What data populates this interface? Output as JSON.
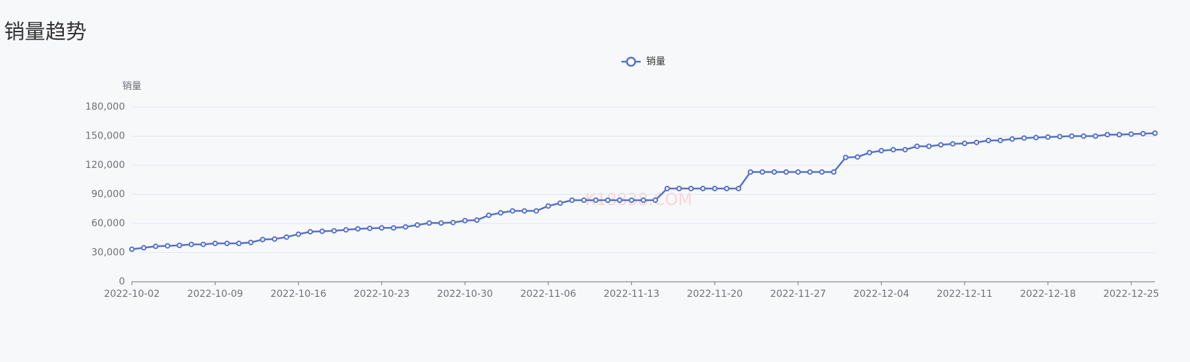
{
  "chart_data": {
    "type": "line",
    "title": "销量趋势",
    "y_axis_label": "销量",
    "watermark": "K18838.COM",
    "categories": [
      "2022-10-02",
      null,
      null,
      null,
      null,
      null,
      null,
      "2022-10-09",
      null,
      null,
      null,
      null,
      null,
      null,
      "2022-10-16",
      null,
      null,
      null,
      null,
      null,
      null,
      "2022-10-23",
      null,
      null,
      null,
      null,
      null,
      null,
      "2022-10-30",
      null,
      null,
      null,
      null,
      null,
      null,
      "2022-11-06",
      null,
      null,
      null,
      null,
      null,
      null,
      "2022-11-13",
      null,
      null,
      null,
      null,
      null,
      null,
      "2022-11-20",
      null,
      null,
      null,
      null,
      null,
      null,
      "2022-11-27",
      null,
      null,
      null,
      null,
      null,
      null,
      "2022-12-04",
      null,
      null,
      null,
      null,
      null,
      null,
      "2022-12-11",
      null,
      null,
      null,
      null,
      null,
      null,
      "2022-12-18",
      null,
      null,
      null,
      null,
      null,
      null,
      "2022-12-25",
      null,
      null
    ],
    "series": [
      {
        "name": "销量",
        "color": "#5470c6",
        "values": [
          33500,
          35000,
          36500,
          37000,
          37500,
          38500,
          38500,
          39500,
          39500,
          39500,
          40500,
          43500,
          44000,
          46000,
          49000,
          51500,
          52000,
          52500,
          53500,
          54500,
          55000,
          55500,
          55500,
          56500,
          58500,
          60500,
          60500,
          61000,
          63000,
          63500,
          68500,
          71000,
          73000,
          73000,
          73000,
          78000,
          81000,
          84000,
          84000,
          84000,
          84000,
          84000,
          84000,
          84000,
          84000,
          96000,
          96000,
          96000,
          96000,
          96000,
          96000,
          96000,
          113000,
          113000,
          113000,
          113000,
          113000,
          113000,
          113000,
          113000,
          128000,
          128500,
          133000,
          135000,
          136000,
          136000,
          139500,
          139500,
          141000,
          142000,
          142500,
          143500,
          145500,
          145500,
          147000,
          148000,
          148500,
          149000,
          149500,
          150000,
          150000,
          150000,
          151500,
          151500,
          152000,
          152500,
          153000
        ]
      }
    ],
    "ylim": [
      0,
      180000
    ],
    "yticks": [
      0,
      {
        "value": 30000,
        "label": "30,000"
      },
      {
        "value": 60000,
        "label": "60,000"
      },
      {
        "value": 90000,
        "label": "90,000"
      },
      {
        "value": 120000,
        "label": "120,000"
      },
      {
        "value": 150000,
        "label": "150,000"
      },
      {
        "value": 180000,
        "label": "180,000"
      }
    ],
    "grid": true
  }
}
